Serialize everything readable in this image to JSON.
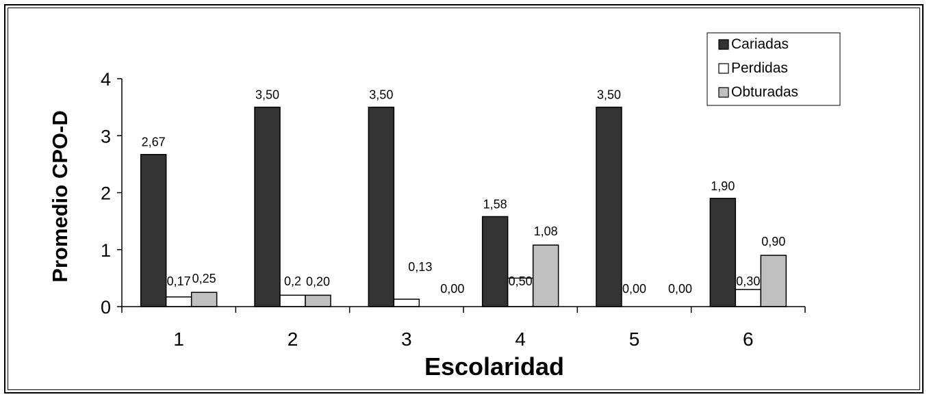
{
  "chart_data": {
    "type": "bar",
    "xlabel": "Escolaridad",
    "ylabel": "Promedio CPO-D",
    "ylim": [
      0,
      4
    ],
    "yticks": [
      "0",
      "1",
      "2",
      "3",
      "4"
    ],
    "categories": [
      "1",
      "2",
      "3",
      "4",
      "5",
      "6"
    ],
    "legend_position": "top-right",
    "grid": false,
    "series": [
      {
        "name": "Cariadas",
        "color": "#333333",
        "values": [
          2.67,
          3.5,
          3.5,
          1.58,
          3.5,
          1.9
        ],
        "labels": [
          "2,67",
          "3,50",
          "3,50",
          "1,58",
          "3,50",
          "1,90"
        ]
      },
      {
        "name": "Perdidas",
        "color": "#ffffff",
        "values": [
          0.17,
          0.2,
          0.13,
          0.5,
          0.0,
          0.3
        ],
        "labels": [
          "0,17",
          "0,2",
          "0,13",
          "0,50",
          "0,00",
          "0,30"
        ]
      },
      {
        "name": "Obturadas",
        "color": "#c0c0c0",
        "values": [
          0.25,
          0.2,
          0.0,
          1.08,
          0.0,
          0.9
        ],
        "labels": [
          "0,25",
          "0,20",
          "0,00",
          "1,08",
          "0,00",
          "0,90"
        ]
      }
    ]
  }
}
